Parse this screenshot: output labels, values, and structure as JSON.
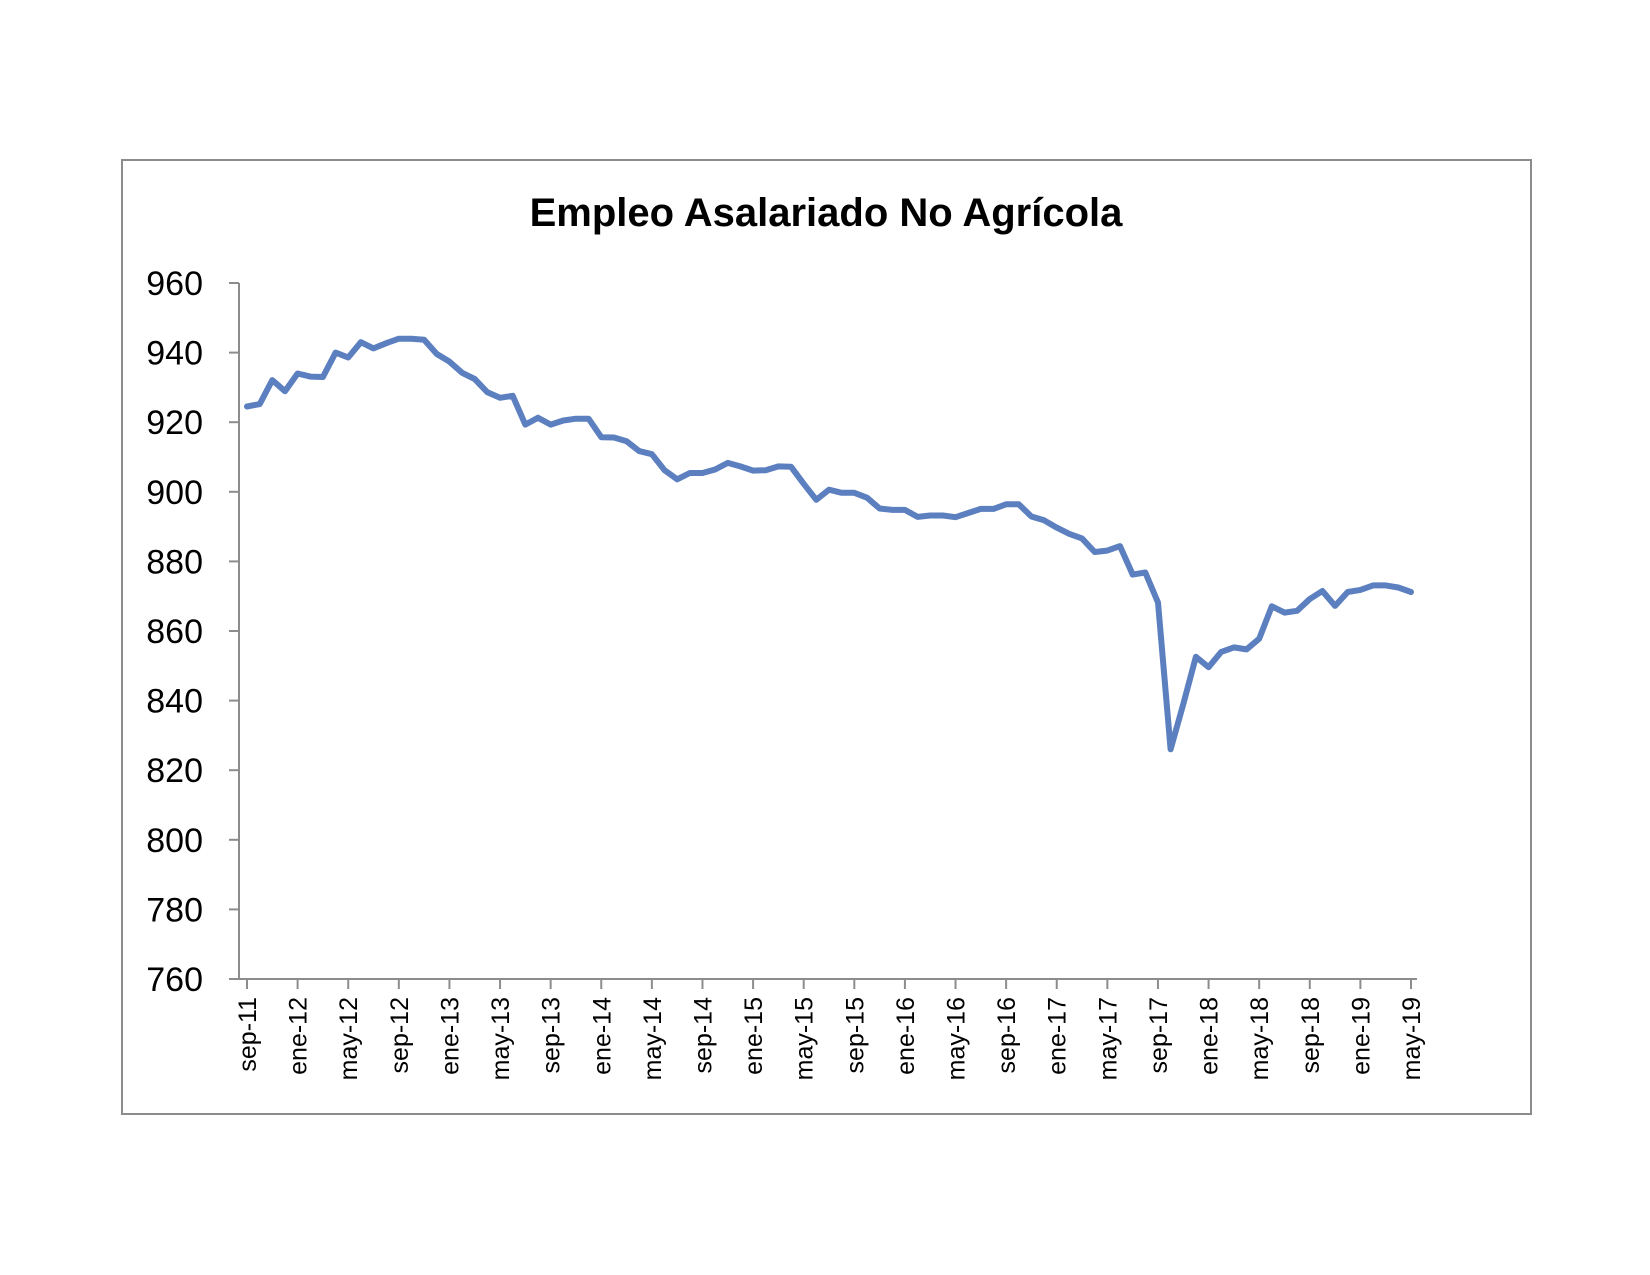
{
  "chart_data": {
    "type": "line",
    "title": "Empleo Asalariado No Agrícola",
    "xlabel": "",
    "ylabel": "",
    "ylim": [
      760,
      960
    ],
    "yticks": [
      760,
      780,
      800,
      820,
      840,
      860,
      880,
      900,
      920,
      940,
      960
    ],
    "xtick_labels": [
      "sep-11",
      "ene-12",
      "may-12",
      "sep-12",
      "ene-13",
      "may-13",
      "sep-13",
      "ene-14",
      "may-14",
      "sep-14",
      "ene-15",
      "may-15",
      "sep-15",
      "ene-16",
      "may-16",
      "sep-16",
      "ene-17",
      "may-17",
      "sep-17",
      "ene-18",
      "may-18",
      "sep-18",
      "ene-19",
      "may-19"
    ],
    "grid": false,
    "legend": "none",
    "line_color": "#5b7fbf",
    "series": [
      {
        "values": [
          924.5,
          925.2,
          932.1,
          928.9,
          934.0,
          933.1,
          933.0,
          940.0,
          938.6,
          943.0,
          941.2,
          942.7,
          944.0,
          944.0,
          943.7,
          939.6,
          937.4,
          934.2,
          932.4,
          928.6,
          927.0,
          927.6,
          919.3,
          921.3,
          919.3,
          920.5,
          921.0,
          921.0,
          915.7,
          915.6,
          914.5,
          911.7,
          910.8,
          906.2,
          903.6,
          905.4,
          905.4,
          906.4,
          908.3,
          907.3,
          906.1,
          906.2,
          907.3,
          907.2,
          902.3,
          897.7,
          900.6,
          899.7,
          899.7,
          898.3,
          895.2,
          894.8,
          894.8,
          892.8,
          893.2,
          893.2,
          892.7,
          893.9,
          895.1,
          895.1,
          896.4,
          896.4,
          892.9,
          891.8,
          889.7,
          887.9,
          886.6,
          882.7,
          883.1,
          884.4,
          876.2,
          876.8,
          868.2,
          826.0,
          839.0,
          852.6,
          849.6,
          854.0,
          855.3,
          854.7,
          857.8,
          867.1,
          865.3,
          865.8,
          869.2,
          871.5,
          867.2,
          871.2,
          871.8,
          873.1,
          873.1,
          872.5,
          871.2
        ]
      }
    ]
  }
}
